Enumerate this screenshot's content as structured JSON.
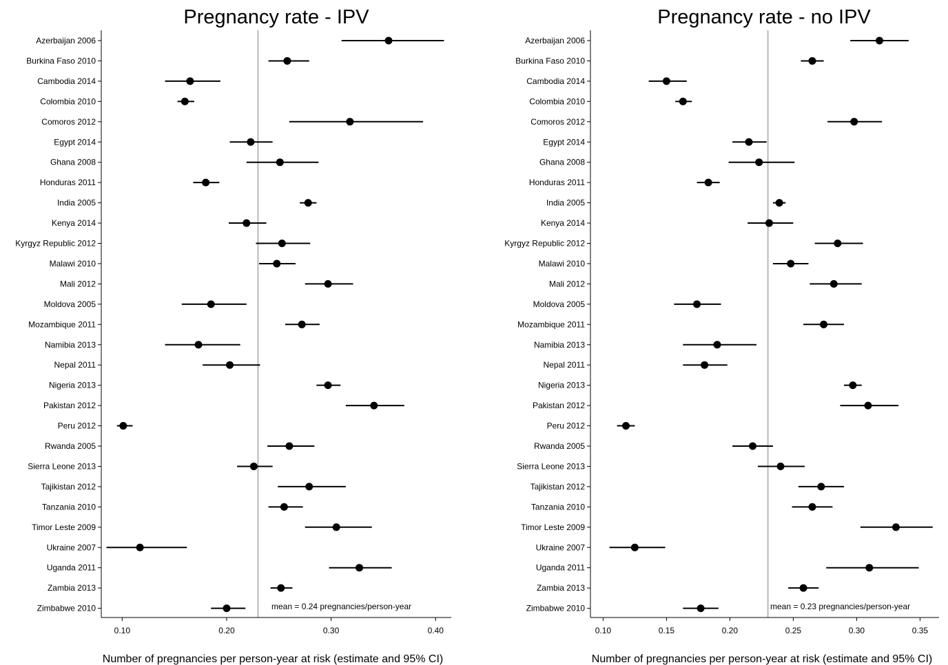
{
  "chart_data": [
    {
      "type": "scatter",
      "subtype": "forest-plot",
      "title": "Pregnancy rate - IPV",
      "xlabel": "Number of pregnancies per person-year at risk (estimate and 95% CI)",
      "xlim": [
        0.08,
        0.415
      ],
      "xticks": [
        0.1,
        0.2,
        0.3,
        0.4
      ],
      "xtick_labels": [
        "0.10",
        "0.20",
        "0.30",
        "0.40"
      ],
      "reference_line": 0.23,
      "annotation": "mean = 0.24 pregnancies/person-year",
      "categories": [
        "Azerbaijan 2006",
        "Burkina Faso 2010",
        "Cambodia 2014",
        "Colombia 2010",
        "Comoros 2012",
        "Egypt 2014",
        "Ghana 2008",
        "Honduras 2011",
        "India 2005",
        "Kenya 2014",
        "Kyrgyz Republic 2012",
        "Malawi 2010",
        "Mali 2012",
        "Moldova 2005",
        "Mozambique 2011",
        "Namibia 2013",
        "Nepal 2011",
        "Nigeria 2013",
        "Pakistan 2012",
        "Peru 2012",
        "Rwanda 2005",
        "Sierra Leone 2013",
        "Tajikistan 2012",
        "Tanzania 2010",
        "Timor Leste 2009",
        "Ukraine 2007",
        "Uganda 2011",
        "Zambia 2013",
        "Zimbabwe 2010"
      ],
      "estimate": [
        0.355,
        0.258,
        0.165,
        0.16,
        0.318,
        0.223,
        0.251,
        0.18,
        0.278,
        0.219,
        0.253,
        0.248,
        0.297,
        0.185,
        0.272,
        0.173,
        0.203,
        0.297,
        0.341,
        0.101,
        0.26,
        0.226,
        0.279,
        0.255,
        0.305,
        0.117,
        0.327,
        0.252,
        0.2
      ],
      "ci_low": [
        0.31,
        0.24,
        0.141,
        0.153,
        0.26,
        0.203,
        0.219,
        0.168,
        0.27,
        0.202,
        0.228,
        0.231,
        0.275,
        0.157,
        0.256,
        0.141,
        0.177,
        0.286,
        0.314,
        0.095,
        0.239,
        0.21,
        0.249,
        0.24,
        0.275,
        0.085,
        0.298,
        0.242,
        0.185
      ],
      "ci_high": [
        0.408,
        0.279,
        0.194,
        0.169,
        0.388,
        0.244,
        0.288,
        0.193,
        0.286,
        0.238,
        0.28,
        0.266,
        0.321,
        0.219,
        0.289,
        0.213,
        0.232,
        0.309,
        0.37,
        0.11,
        0.284,
        0.244,
        0.314,
        0.273,
        0.339,
        0.162,
        0.358,
        0.263,
        0.218
      ]
    },
    {
      "type": "scatter",
      "subtype": "forest-plot",
      "title": "Pregnancy rate - no IPV",
      "xlabel": "Number of pregnancies per person-year at risk (estimate and 95% CI)",
      "xlim": [
        0.09,
        0.365
      ],
      "xticks": [
        0.1,
        0.15,
        0.2,
        0.25,
        0.3,
        0.35
      ],
      "xtick_labels": [
        "0.10",
        "0.15",
        "0.20",
        "0.25",
        "0.30",
        "0.35"
      ],
      "reference_line": 0.23,
      "annotation": "mean = 0.23 pregnancies/person-year",
      "categories": [
        "Azerbaijan 2006",
        "Burkina Faso 2010",
        "Cambodia 2014",
        "Colombia 2010",
        "Comoros 2012",
        "Egypt 2014",
        "Ghana 2008",
        "Honduras 2011",
        "India 2005",
        "Kenya 2014",
        "Kyrgyz Republic 2012",
        "Malawi 2010",
        "Mali 2012",
        "Moldova 2005",
        "Mozambique 2011",
        "Namibia 2013",
        "Nepal 2011",
        "Nigeria 2013",
        "Pakistan 2012",
        "Peru 2012",
        "Rwanda 2005",
        "Sierra Leone 2013",
        "Tajikistan 2012",
        "Tanzania 2010",
        "Timor Leste 2009",
        "Ukraine 2007",
        "Uganda 2011",
        "Zambia 2013",
        "Zimbabwe 2010"
      ],
      "estimate": [
        0.318,
        0.265,
        0.15,
        0.163,
        0.298,
        0.215,
        0.223,
        0.183,
        0.239,
        0.231,
        0.285,
        0.248,
        0.282,
        0.174,
        0.274,
        0.19,
        0.18,
        0.297,
        0.309,
        0.118,
        0.218,
        0.24,
        0.272,
        0.265,
        0.331,
        0.125,
        0.31,
        0.258,
        0.177
      ],
      "ci_low": [
        0.295,
        0.256,
        0.136,
        0.157,
        0.277,
        0.202,
        0.199,
        0.174,
        0.234,
        0.214,
        0.267,
        0.234,
        0.263,
        0.156,
        0.258,
        0.163,
        0.163,
        0.29,
        0.287,
        0.111,
        0.202,
        0.222,
        0.254,
        0.249,
        0.303,
        0.105,
        0.276,
        0.246,
        0.163
      ],
      "ci_high": [
        0.341,
        0.274,
        0.166,
        0.17,
        0.32,
        0.229,
        0.251,
        0.192,
        0.244,
        0.25,
        0.305,
        0.262,
        0.304,
        0.193,
        0.29,
        0.221,
        0.198,
        0.304,
        0.333,
        0.125,
        0.234,
        0.259,
        0.29,
        0.281,
        0.36,
        0.149,
        0.349,
        0.27,
        0.191
      ]
    }
  ]
}
